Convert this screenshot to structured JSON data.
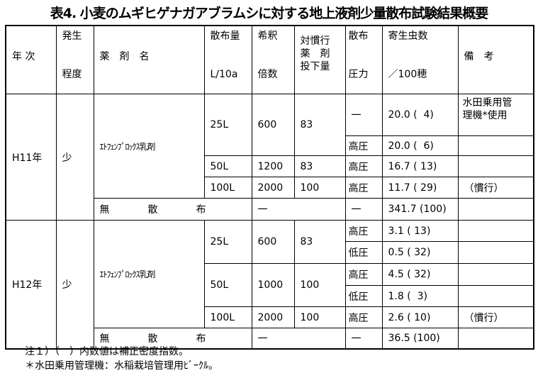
{
  "title": "表4. 小麦のムギヒゲナガアブラムシに対する地上液剤少量散布試験結果概要",
  "headers": {
    "year": "年 次",
    "occurrence": [
      "発生",
      "程度"
    ],
    "chemical": "薬　剤　名",
    "amount": [
      "散布量",
      "L/10a"
    ],
    "dilution": [
      "希釈",
      "倍数"
    ],
    "ratio": [
      "対慣行",
      "薬　剤",
      "投下量"
    ],
    "pressure": [
      "散布",
      "圧力"
    ],
    "count": [
      "寄生虫数",
      "／100穂"
    ],
    "remarks": "備　考"
  },
  "sections": [
    {
      "year": "H11年",
      "level": "少",
      "chemical": "ｴﾄﾌｪﾝﾌﾟﾛｯｸｽ乳剤",
      "doses": [
        {
          "amount": "25L",
          "dilution": "600",
          "ratio": "83",
          "applications": [
            {
              "pressure": "一",
              "count": "20.0 (  4)",
              "note": "水田乗用管\n理機*使用"
            },
            {
              "pressure": "高圧",
              "count": "20.0 (  6)",
              "note": ""
            }
          ]
        },
        {
          "amount": "50L",
          "dilution": "1200",
          "ratio": "83",
          "applications": [
            {
              "pressure": "高圧",
              "count": "16.7 ( 13)",
              "note": ""
            }
          ]
        },
        {
          "amount": "100L",
          "dilution": "2000",
          "ratio": "100",
          "applications": [
            {
              "pressure": "高圧",
              "count": "11.7 ( 29)",
              "note": "（慣行）"
            }
          ]
        }
      ],
      "no_spray": {
        "label": "無　散　布",
        "dilution": "一",
        "pressure": "一",
        "count": "341.7 (100)"
      }
    },
    {
      "year": "H12年",
      "level": "少",
      "chemical": "ｴﾄﾌｪﾝﾌﾟﾛｯｸｽ乳剤",
      "doses": [
        {
          "amount": "25L",
          "dilution": "600",
          "ratio": "83",
          "applications": [
            {
              "pressure": "高圧",
              "count": "3.1 ( 13)",
              "note": ""
            },
            {
              "pressure": "低圧",
              "count": "0.5 ( 32)",
              "note": ""
            }
          ]
        },
        {
          "amount": "50L",
          "dilution": "1000",
          "ratio": "100",
          "applications": [
            {
              "pressure": "高圧",
              "count": "4.5 ( 32)",
              "note": ""
            },
            {
              "pressure": "低圧",
              "count": "1.8 (  3)",
              "note": ""
            }
          ]
        },
        {
          "amount": "100L",
          "dilution": "2000",
          "ratio": "100",
          "applications": [
            {
              "pressure": "高圧",
              "count": "2.6 ( 10)",
              "note": "（慣行）"
            }
          ]
        }
      ],
      "no_spray": {
        "label": "無　散　布",
        "dilution": "一",
        "pressure": "一",
        "count": "36.5 (100)"
      }
    }
  ],
  "notes": [
    "注１）（　）内数値は補正密度指数。",
    "＊水田乗用管理機：水稲栽培管理用ﾋﾞｰｸﾙ。"
  ]
}
